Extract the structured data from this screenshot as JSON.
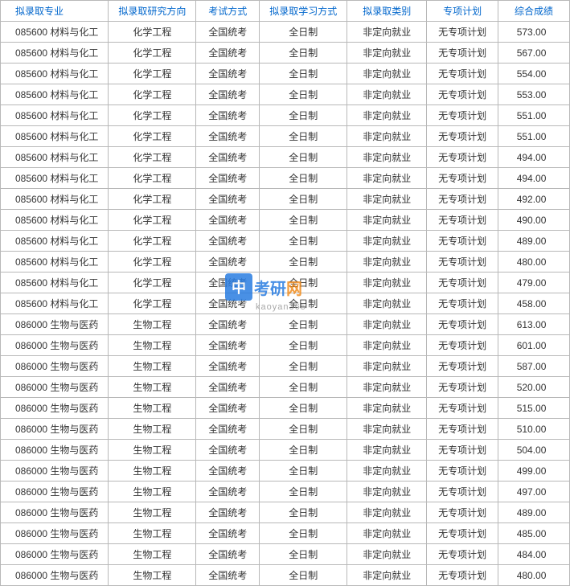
{
  "table": {
    "columns": [
      "拟录取专业",
      "拟录取研究方向",
      "考试方式",
      "拟录取学习方式",
      "拟录取类别",
      "专项计划",
      "综合成绩"
    ],
    "header_color": "#0066cc",
    "border_color": "#b8b8b8",
    "cell_color": "#333333",
    "fontsize": 12,
    "rows": [
      [
        "085600 材料与化工",
        "化学工程",
        "全国统考",
        "全日制",
        "非定向就业",
        "无专项计划",
        "573.00"
      ],
      [
        "085600 材料与化工",
        "化学工程",
        "全国统考",
        "全日制",
        "非定向就业",
        "无专项计划",
        "567.00"
      ],
      [
        "085600 材料与化工",
        "化学工程",
        "全国统考",
        "全日制",
        "非定向就业",
        "无专项计划",
        "554.00"
      ],
      [
        "085600 材料与化工",
        "化学工程",
        "全国统考",
        "全日制",
        "非定向就业",
        "无专项计划",
        "553.00"
      ],
      [
        "085600 材料与化工",
        "化学工程",
        "全国统考",
        "全日制",
        "非定向就业",
        "无专项计划",
        "551.00"
      ],
      [
        "085600 材料与化工",
        "化学工程",
        "全国统考",
        "全日制",
        "非定向就业",
        "无专项计划",
        "551.00"
      ],
      [
        "085600 材料与化工",
        "化学工程",
        "全国统考",
        "全日制",
        "非定向就业",
        "无专项计划",
        "494.00"
      ],
      [
        "085600 材料与化工",
        "化学工程",
        "全国统考",
        "全日制",
        "非定向就业",
        "无专项计划",
        "494.00"
      ],
      [
        "085600 材料与化工",
        "化学工程",
        "全国统考",
        "全日制",
        "非定向就业",
        "无专项计划",
        "492.00"
      ],
      [
        "085600 材料与化工",
        "化学工程",
        "全国统考",
        "全日制",
        "非定向就业",
        "无专项计划",
        "490.00"
      ],
      [
        "085600 材料与化工",
        "化学工程",
        "全国统考",
        "全日制",
        "非定向就业",
        "无专项计划",
        "489.00"
      ],
      [
        "085600 材料与化工",
        "化学工程",
        "全国统考",
        "全日制",
        "非定向就业",
        "无专项计划",
        "480.00"
      ],
      [
        "085600 材料与化工",
        "化学工程",
        "全国统考",
        "全日制",
        "非定向就业",
        "无专项计划",
        "479.00"
      ],
      [
        "085600 材料与化工",
        "化学工程",
        "全国统考",
        "全日制",
        "非定向就业",
        "无专项计划",
        "458.00"
      ],
      [
        "086000 生物与医药",
        "生物工程",
        "全国统考",
        "全日制",
        "非定向就业",
        "无专项计划",
        "613.00"
      ],
      [
        "086000 生物与医药",
        "生物工程",
        "全国统考",
        "全日制",
        "非定向就业",
        "无专项计划",
        "601.00"
      ],
      [
        "086000 生物与医药",
        "生物工程",
        "全国统考",
        "全日制",
        "非定向就业",
        "无专项计划",
        "587.00"
      ],
      [
        "086000 生物与医药",
        "生物工程",
        "全国统考",
        "全日制",
        "非定向就业",
        "无专项计划",
        "520.00"
      ],
      [
        "086000 生物与医药",
        "生物工程",
        "全国统考",
        "全日制",
        "非定向就业",
        "无专项计划",
        "515.00"
      ],
      [
        "086000 生物与医药",
        "生物工程",
        "全国统考",
        "全日制",
        "非定向就业",
        "无专项计划",
        "510.00"
      ],
      [
        "086000 生物与医药",
        "生物工程",
        "全国统考",
        "全日制",
        "非定向就业",
        "无专项计划",
        "504.00"
      ],
      [
        "086000 生物与医药",
        "生物工程",
        "全国统考",
        "全日制",
        "非定向就业",
        "无专项计划",
        "499.00"
      ],
      [
        "086000 生物与医药",
        "生物工程",
        "全国统考",
        "全日制",
        "非定向就业",
        "无专项计划",
        "497.00"
      ],
      [
        "086000 生物与医药",
        "生物工程",
        "全国统考",
        "全日制",
        "非定向就业",
        "无专项计划",
        "489.00"
      ],
      [
        "086000 生物与医药",
        "生物工程",
        "全国统考",
        "全日制",
        "非定向就业",
        "无专项计划",
        "485.00"
      ],
      [
        "086000 生物与医药",
        "生物工程",
        "全国统考",
        "全日制",
        "非定向就业",
        "无专项计划",
        "484.00"
      ],
      [
        "086000 生物与医药",
        "生物工程",
        "全国统考",
        "全日制",
        "非定向就业",
        "无专项计划",
        "480.00"
      ]
    ]
  },
  "watermark": {
    "badge": "中",
    "text1": "考研",
    "text2": "网",
    "sub": "kaoyan365",
    "badge_bg": "#2a7de1",
    "text1_color": "#2a7de1",
    "text2_color": "#f08c1e",
    "sub_color": "#999999"
  }
}
